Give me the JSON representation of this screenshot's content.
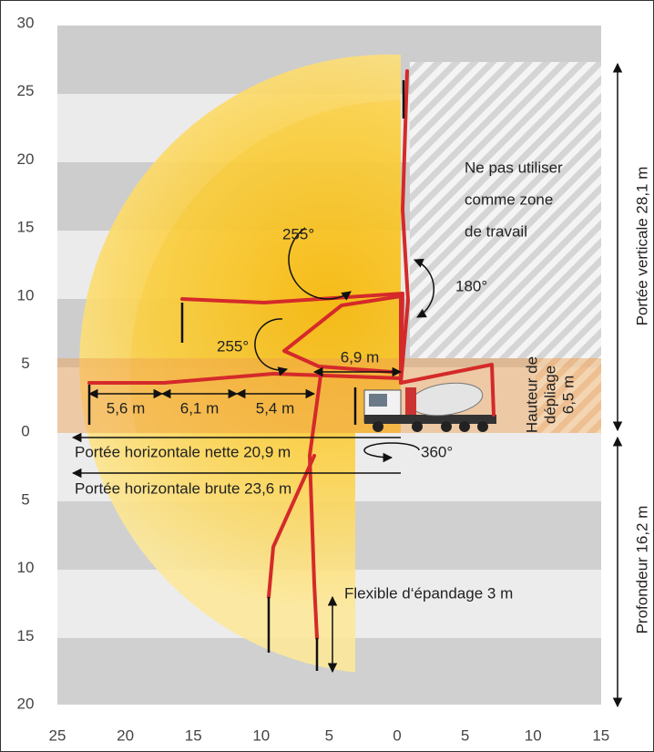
{
  "y_axis_labels": [
    30,
    25,
    20,
    15,
    10,
    5,
    0,
    5,
    10,
    15,
    20
  ],
  "x_axis_labels": [
    25,
    20,
    15,
    10,
    5,
    0,
    5,
    10,
    15
  ],
  "no_work_zone": [
    "Ne pas utiliser",
    "comme zone",
    "de travail"
  ],
  "angles": {
    "top": "255°",
    "middle": "255°",
    "vertical": "180°",
    "slew": "360°"
  },
  "segments": [
    "5,6 m",
    "6,1 m",
    "5,4 m",
    "6,9 m"
  ],
  "net_reach": "Portée horizontale nette 20,9 m",
  "gross_reach": "Portée horizontale brute 23,6 m",
  "unfolding_height": [
    "Hauteur de",
    "dépliage",
    "6,5 m"
  ],
  "vertical_reach": "Portée verticale 28,1 m",
  "depth": "Profondeur 16,2 m",
  "hose": "Flexible d‘épandage 3 m"
}
